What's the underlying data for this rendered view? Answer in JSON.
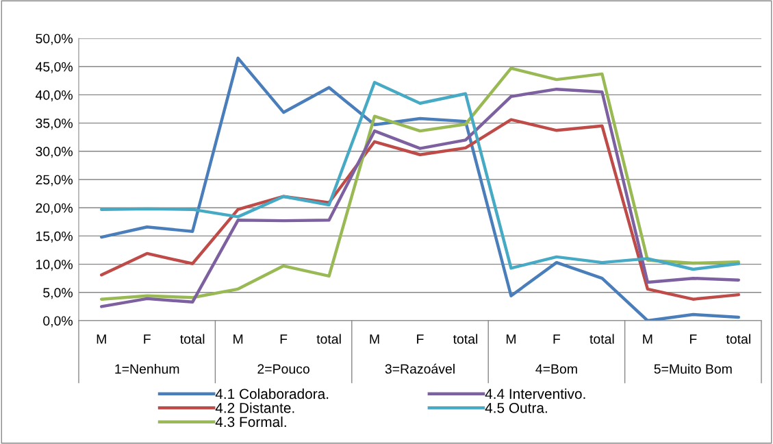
{
  "chart_data": {
    "type": "line",
    "categories": [
      "M",
      "F",
      "total",
      "M",
      "F",
      "total",
      "M",
      "F",
      "total",
      "M",
      "F",
      "total",
      "M",
      "F",
      "total"
    ],
    "annotations": [
      "1=Nenhum",
      "2=Pouco",
      "3=Razoável",
      "4=Bom",
      "5=Muito Bom"
    ],
    "series": [
      {
        "name": "4.1 Colaboradora.",
        "color": "#4a7ebb",
        "values": [
          14.8,
          16.6,
          15.8,
          46.5,
          36.9,
          41.3,
          34.7,
          35.8,
          35.3,
          4.4,
          10.3,
          7.5,
          0.0,
          1.1,
          0.6
        ]
      },
      {
        "name": "4.2 Distante.",
        "color": "#be4b48",
        "values": [
          8.1,
          11.9,
          10.1,
          19.7,
          22.0,
          20.9,
          31.7,
          29.4,
          30.6,
          35.6,
          33.7,
          34.5,
          5.6,
          3.8,
          4.6
        ]
      },
      {
        "name": "4.3 Formal.",
        "color": "#98b954",
        "values": [
          3.8,
          4.4,
          4.1,
          5.6,
          9.7,
          7.9,
          36.2,
          33.6,
          34.8,
          44.7,
          42.7,
          43.7,
          10.7,
          10.2,
          10.4
        ]
      },
      {
        "name": "4.4 Interventivo.",
        "color": "#7d60a0",
        "values": [
          2.5,
          3.9,
          3.3,
          17.8,
          17.7,
          17.8,
          33.6,
          30.5,
          32.0,
          39.7,
          41.0,
          40.5,
          6.8,
          7.5,
          7.2
        ]
      },
      {
        "name": "4.5 Outra.",
        "color": "#46aac5",
        "values": [
          19.7,
          19.8,
          19.7,
          18.4,
          22.0,
          20.5,
          42.2,
          38.5,
          40.2,
          9.3,
          11.3,
          10.3,
          11.0,
          9.1,
          10.1
        ]
      }
    ],
    "ylim": [
      0,
      50
    ],
    "yticks": [
      {
        "value": 0,
        "label": "0,0%"
      },
      {
        "value": 5,
        "label": "5,0%"
      },
      {
        "value": 10,
        "label": "10,0%"
      },
      {
        "value": 15,
        "label": "15,0%"
      },
      {
        "value": 20,
        "label": "20,0%"
      },
      {
        "value": 25,
        "label": "25,0%"
      },
      {
        "value": 30,
        "label": "30,0%"
      },
      {
        "value": 35,
        "label": "35,0%"
      },
      {
        "value": 40,
        "label": "40,0%"
      },
      {
        "value": 45,
        "label": "45,0%"
      },
      {
        "value": 50,
        "label": "50,0%"
      }
    ],
    "grid": "y",
    "legend": "bottom",
    "marker": "none",
    "line_style": "solid"
  }
}
